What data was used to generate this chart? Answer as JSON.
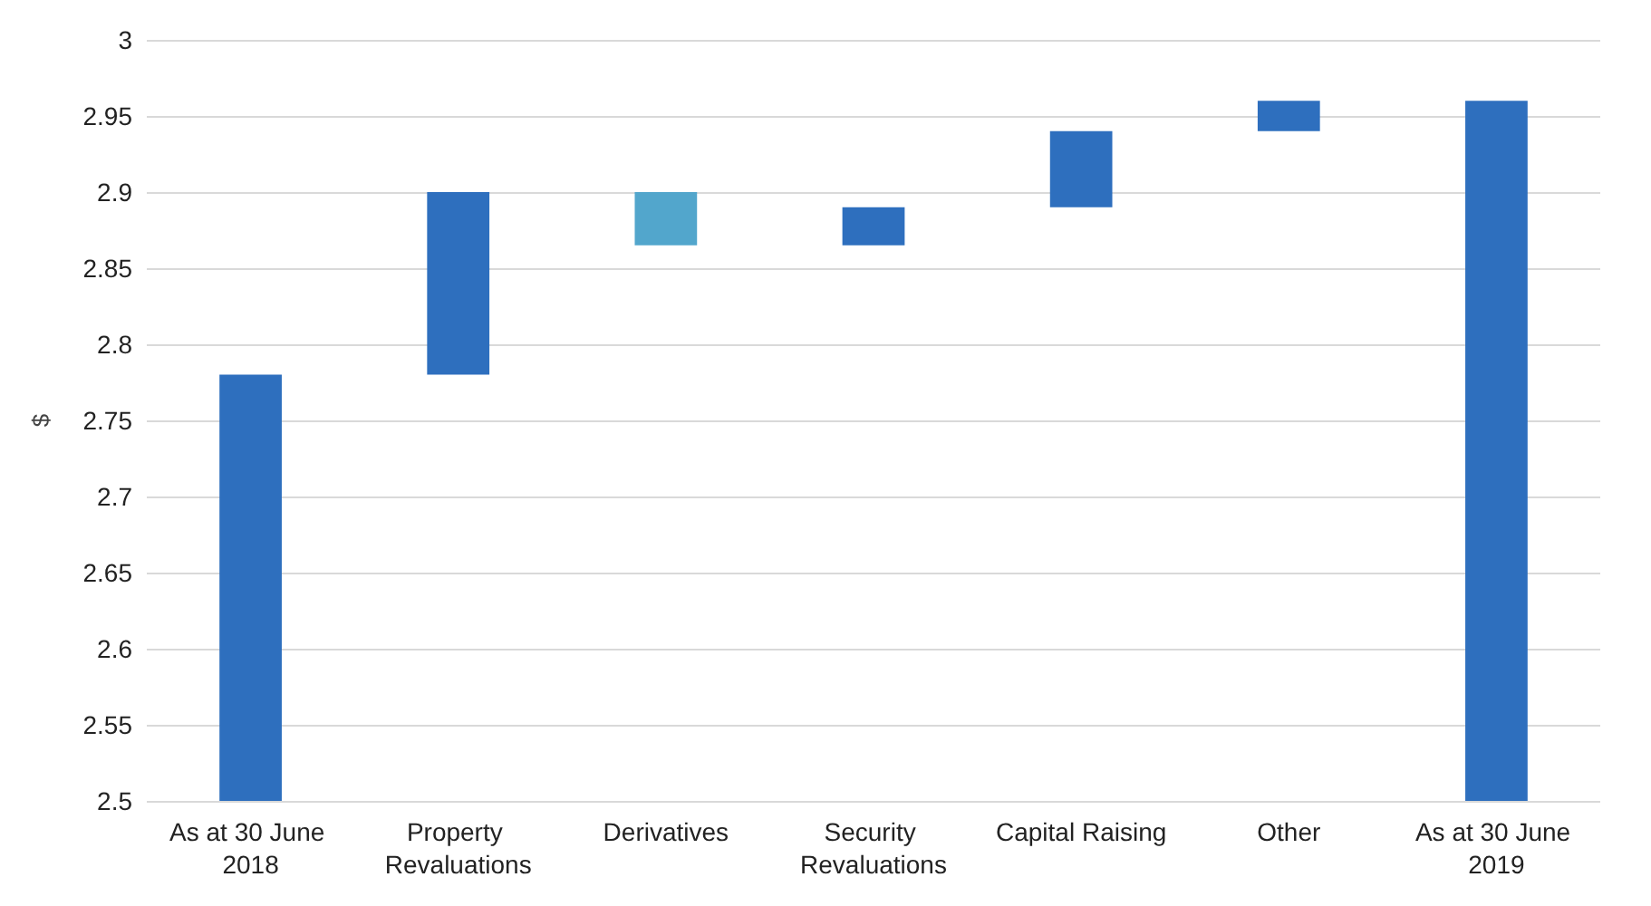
{
  "chart_data": {
    "type": "bar",
    "ylabel": "$",
    "categories": [
      "As at 30 June 2018",
      "Property Revaluations",
      "Derivatives",
      "Security Revaluations",
      "Capital Raising",
      "Other",
      "As at 30 June 2019"
    ],
    "base": [
      2.5,
      2.78,
      2.865,
      2.865,
      2.89,
      2.94,
      2.5
    ],
    "values": [
      0.28,
      0.12,
      0.035,
      0.025,
      0.05,
      0.02,
      0.46
    ],
    "colors": [
      "#2e6fbe",
      "#2e6fbe",
      "#52a6cc",
      "#2e6fbe",
      "#2e6fbe",
      "#2e6fbe",
      "#2e6fbe"
    ],
    "ylim": [
      2.5,
      3
    ],
    "yticks": [
      2.5,
      2.55,
      2.6,
      2.65,
      2.7,
      2.75,
      2.8,
      2.85,
      2.9,
      2.95,
      3
    ],
    "grid": true
  }
}
